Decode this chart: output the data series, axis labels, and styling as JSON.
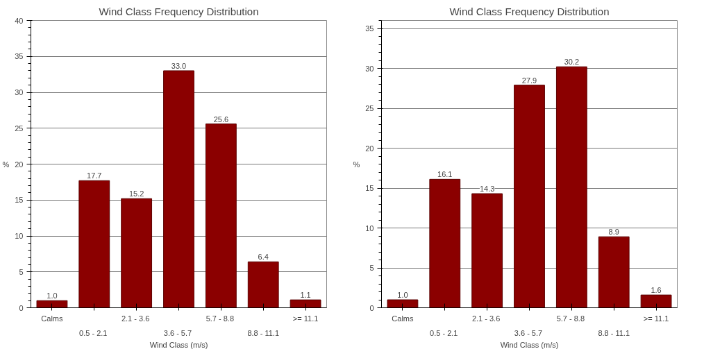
{
  "chart_data": [
    {
      "type": "bar",
      "title": "Wind Class Frequency Distribution",
      "xlabel": "Wind Class (m/s)",
      "ylabel": "%",
      "categories": [
        "Calms",
        "0.5 -  2.1",
        "2.1 -  3.6",
        "3.6 -  5.7",
        "5.7 -  8.8",
        "8.8 - 11.1",
        ">= 11.1"
      ],
      "values": [
        1.0,
        17.7,
        15.2,
        33.0,
        25.6,
        6.4,
        1.1
      ],
      "value_labels": [
        "1.0",
        "17.7",
        "15.2",
        "33.0",
        "25.6",
        "6.4",
        "1.1"
      ],
      "color": "#8b0000",
      "ylim": [
        0,
        40
      ],
      "yticks": [
        0,
        5,
        10,
        15,
        20,
        25,
        30,
        35,
        40
      ],
      "grid": "y"
    },
    {
      "type": "bar",
      "title": "Wind Class Frequency Distribution",
      "xlabel": "Wind Class (m/s)",
      "ylabel": "%",
      "categories": [
        "Calms",
        "0.5 -  2.1",
        "2.1 -  3.6",
        "3.6 -  5.7",
        "5.7 -  8.8",
        "8.8 - 11.1",
        ">= 11.1"
      ],
      "values": [
        1.0,
        16.1,
        14.3,
        27.9,
        30.2,
        8.9,
        1.6
      ],
      "value_labels": [
        "1.0",
        "16.1",
        "14.3",
        "27.9",
        "30.2",
        "8.9",
        "1.6"
      ],
      "color": "#8b0000",
      "ylim": [
        0,
        36
      ],
      "yticks": [
        0,
        5,
        10,
        15,
        20,
        25,
        30,
        35
      ],
      "grid": "y"
    }
  ]
}
